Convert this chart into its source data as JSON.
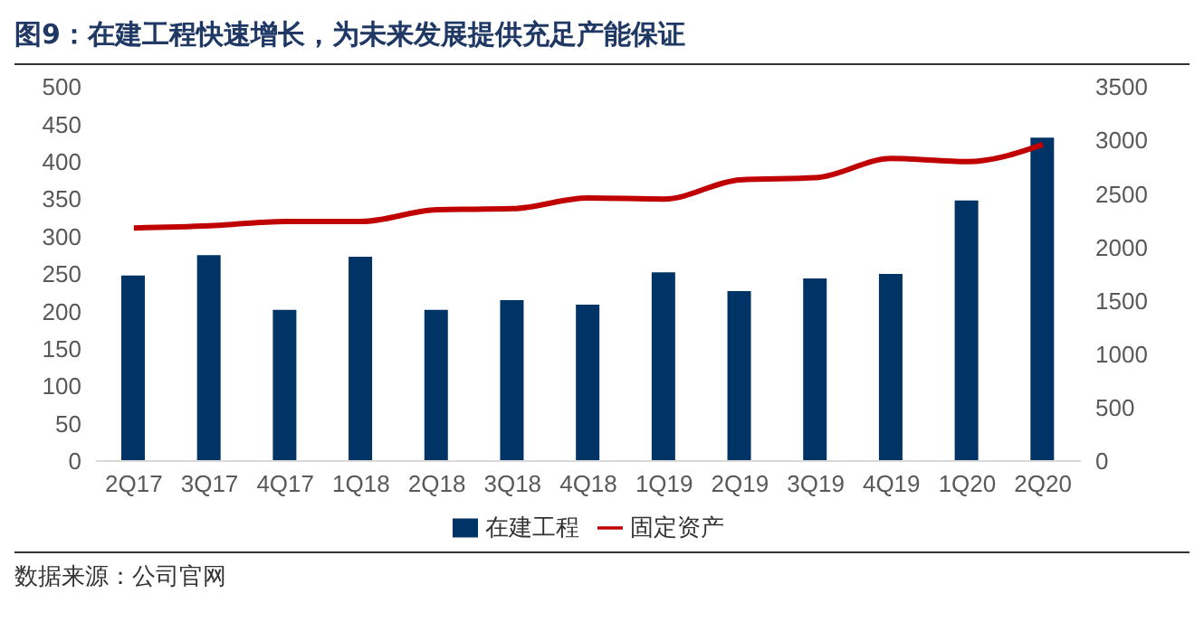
{
  "chart_data": {
    "type": "bar",
    "title": "图9：在建工程快速增长，为未来发展提供充足产能保证",
    "categories": [
      "2Q17",
      "3Q17",
      "4Q17",
      "1Q18",
      "2Q18",
      "3Q18",
      "4Q18",
      "1Q19",
      "2Q19",
      "3Q19",
      "4Q19",
      "1Q20",
      "2Q20"
    ],
    "series": [
      {
        "name": "在建工程",
        "color": "#003366",
        "values": [
          248,
          275,
          202,
          273,
          202,
          215,
          209,
          252,
          227,
          244,
          250,
          348,
          432
        ]
      },
      {
        "name": "固定资产",
        "type": "line",
        "axis": "y2",
        "color": "#c00000",
        "values": [
          2180,
          2200,
          2240,
          2240,
          2350,
          2360,
          2460,
          2450,
          2630,
          2650,
          2830,
          2800,
          2960
        ]
      }
    ],
    "ylim": [
      0,
      500
    ],
    "yticks": [
      0,
      50,
      100,
      150,
      200,
      250,
      300,
      350,
      400,
      450,
      500
    ],
    "y2lim": [
      0,
      3500
    ],
    "y2ticks": [
      0,
      500,
      1000,
      1500,
      2000,
      2500,
      3000,
      3500
    ],
    "grid": false,
    "legend": "bottom",
    "marker": "none",
    "line_style": "solid",
    "annotations": [
      "数据来源：公司官网"
    ]
  }
}
